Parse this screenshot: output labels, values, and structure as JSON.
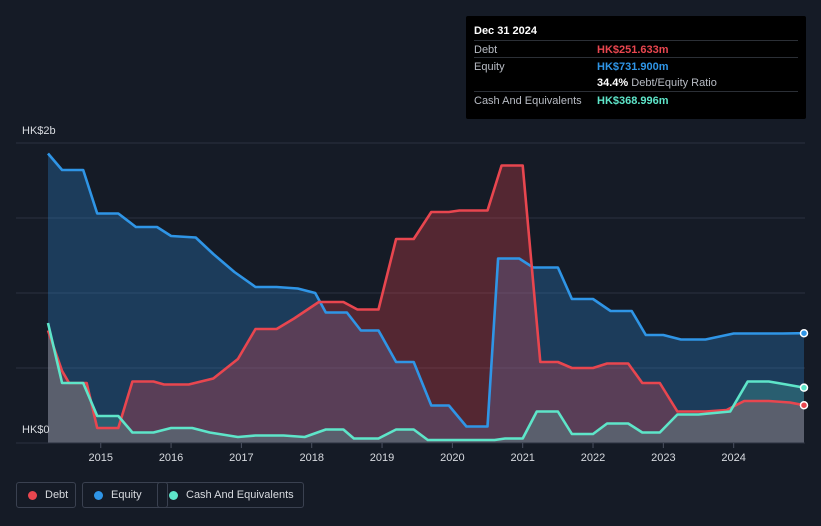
{
  "tooltip": {
    "date": "Dec 31 2024",
    "debt_label": "Debt",
    "debt_value": "HK$251.633m",
    "equity_label": "Equity",
    "equity_value": "HK$731.900m",
    "ratio_value": "34.4%",
    "ratio_label": "Debt/Equity Ratio",
    "cash_label": "Cash And Equivalents",
    "cash_value": "HK$368.996m"
  },
  "colors": {
    "debt": "#e8464f",
    "equity": "#2f95e6",
    "cash": "#5ee5c9",
    "background": "#151b26"
  },
  "legend": [
    {
      "key": "debt",
      "label": "Debt"
    },
    {
      "key": "equity",
      "label": "Equity"
    },
    {
      "key": "cash",
      "label": "Cash And Equivalents"
    }
  ],
  "chart_data": {
    "type": "area",
    "y_top_label": "HK$2b",
    "y_bottom_label": "HK$0",
    "ylim": [
      0,
      2000
    ],
    "xlim": [
      2014.25,
      2025.0
    ],
    "x_ticks": [
      "2015",
      "2016",
      "2017",
      "2018",
      "2019",
      "2020",
      "2021",
      "2022",
      "2023",
      "2024"
    ],
    "grid": true,
    "series": [
      {
        "name": "Debt",
        "key": "debt",
        "points": [
          [
            2014.25,
            750
          ],
          [
            2014.45,
            480
          ],
          [
            2014.55,
            400
          ],
          [
            2014.8,
            400
          ],
          [
            2014.95,
            100
          ],
          [
            2015.25,
            100
          ],
          [
            2015.45,
            410
          ],
          [
            2015.75,
            410
          ],
          [
            2015.9,
            390
          ],
          [
            2016.25,
            390
          ],
          [
            2016.6,
            430
          ],
          [
            2016.95,
            560
          ],
          [
            2017.2,
            760
          ],
          [
            2017.5,
            760
          ],
          [
            2017.75,
            830
          ],
          [
            2018.1,
            940
          ],
          [
            2018.45,
            940
          ],
          [
            2018.65,
            890
          ],
          [
            2018.95,
            890
          ],
          [
            2019.2,
            1360
          ],
          [
            2019.45,
            1360
          ],
          [
            2019.7,
            1540
          ],
          [
            2019.95,
            1540
          ],
          [
            2020.1,
            1550
          ],
          [
            2020.5,
            1550
          ],
          [
            2020.7,
            1850
          ],
          [
            2021.0,
            1850
          ],
          [
            2021.25,
            540
          ],
          [
            2021.5,
            540
          ],
          [
            2021.7,
            500
          ],
          [
            2022.0,
            500
          ],
          [
            2022.2,
            530
          ],
          [
            2022.5,
            530
          ],
          [
            2022.7,
            400
          ],
          [
            2022.95,
            400
          ],
          [
            2023.2,
            210
          ],
          [
            2023.6,
            210
          ],
          [
            2023.9,
            220
          ],
          [
            2024.15,
            280
          ],
          [
            2024.5,
            280
          ],
          [
            2024.8,
            270
          ],
          [
            2025.0,
            252
          ]
        ]
      },
      {
        "name": "Equity",
        "key": "equity",
        "points": [
          [
            2014.25,
            1930
          ],
          [
            2014.45,
            1820
          ],
          [
            2014.75,
            1820
          ],
          [
            2014.95,
            1530
          ],
          [
            2015.25,
            1530
          ],
          [
            2015.5,
            1440
          ],
          [
            2015.8,
            1440
          ],
          [
            2016.0,
            1380
          ],
          [
            2016.35,
            1370
          ],
          [
            2016.6,
            1260
          ],
          [
            2016.9,
            1140
          ],
          [
            2017.2,
            1040
          ],
          [
            2017.5,
            1040
          ],
          [
            2017.8,
            1030
          ],
          [
            2018.05,
            1000
          ],
          [
            2018.2,
            870
          ],
          [
            2018.5,
            870
          ],
          [
            2018.7,
            750
          ],
          [
            2018.95,
            750
          ],
          [
            2019.2,
            540
          ],
          [
            2019.45,
            540
          ],
          [
            2019.7,
            250
          ],
          [
            2019.95,
            250
          ],
          [
            2020.2,
            110
          ],
          [
            2020.5,
            110
          ],
          [
            2020.65,
            1230
          ],
          [
            2020.95,
            1230
          ],
          [
            2021.15,
            1170
          ],
          [
            2021.5,
            1170
          ],
          [
            2021.7,
            960
          ],
          [
            2022.0,
            960
          ],
          [
            2022.25,
            880
          ],
          [
            2022.55,
            880
          ],
          [
            2022.75,
            720
          ],
          [
            2023.0,
            720
          ],
          [
            2023.25,
            690
          ],
          [
            2023.6,
            690
          ],
          [
            2024.0,
            730
          ],
          [
            2024.7,
            730
          ],
          [
            2025.0,
            732
          ]
        ]
      },
      {
        "name": "Cash And Equivalents",
        "key": "cash",
        "points": [
          [
            2014.25,
            800
          ],
          [
            2014.45,
            400
          ],
          [
            2014.75,
            400
          ],
          [
            2014.95,
            180
          ],
          [
            2015.25,
            180
          ],
          [
            2015.45,
            70
          ],
          [
            2015.75,
            70
          ],
          [
            2016.0,
            100
          ],
          [
            2016.3,
            100
          ],
          [
            2016.55,
            70
          ],
          [
            2016.95,
            40
          ],
          [
            2017.2,
            50
          ],
          [
            2017.6,
            50
          ],
          [
            2017.9,
            40
          ],
          [
            2018.2,
            90
          ],
          [
            2018.45,
            90
          ],
          [
            2018.6,
            30
          ],
          [
            2018.95,
            30
          ],
          [
            2019.2,
            90
          ],
          [
            2019.45,
            90
          ],
          [
            2019.65,
            20
          ],
          [
            2020.0,
            20
          ],
          [
            2020.6,
            20
          ],
          [
            2020.75,
            30
          ],
          [
            2021.0,
            30
          ],
          [
            2021.2,
            210
          ],
          [
            2021.5,
            210
          ],
          [
            2021.7,
            60
          ],
          [
            2022.0,
            60
          ],
          [
            2022.2,
            130
          ],
          [
            2022.5,
            130
          ],
          [
            2022.7,
            70
          ],
          [
            2022.95,
            70
          ],
          [
            2023.2,
            190
          ],
          [
            2023.5,
            190
          ],
          [
            2023.95,
            210
          ],
          [
            2024.2,
            410
          ],
          [
            2024.5,
            410
          ],
          [
            2024.75,
            390
          ],
          [
            2025.0,
            369
          ]
        ]
      }
    ]
  }
}
